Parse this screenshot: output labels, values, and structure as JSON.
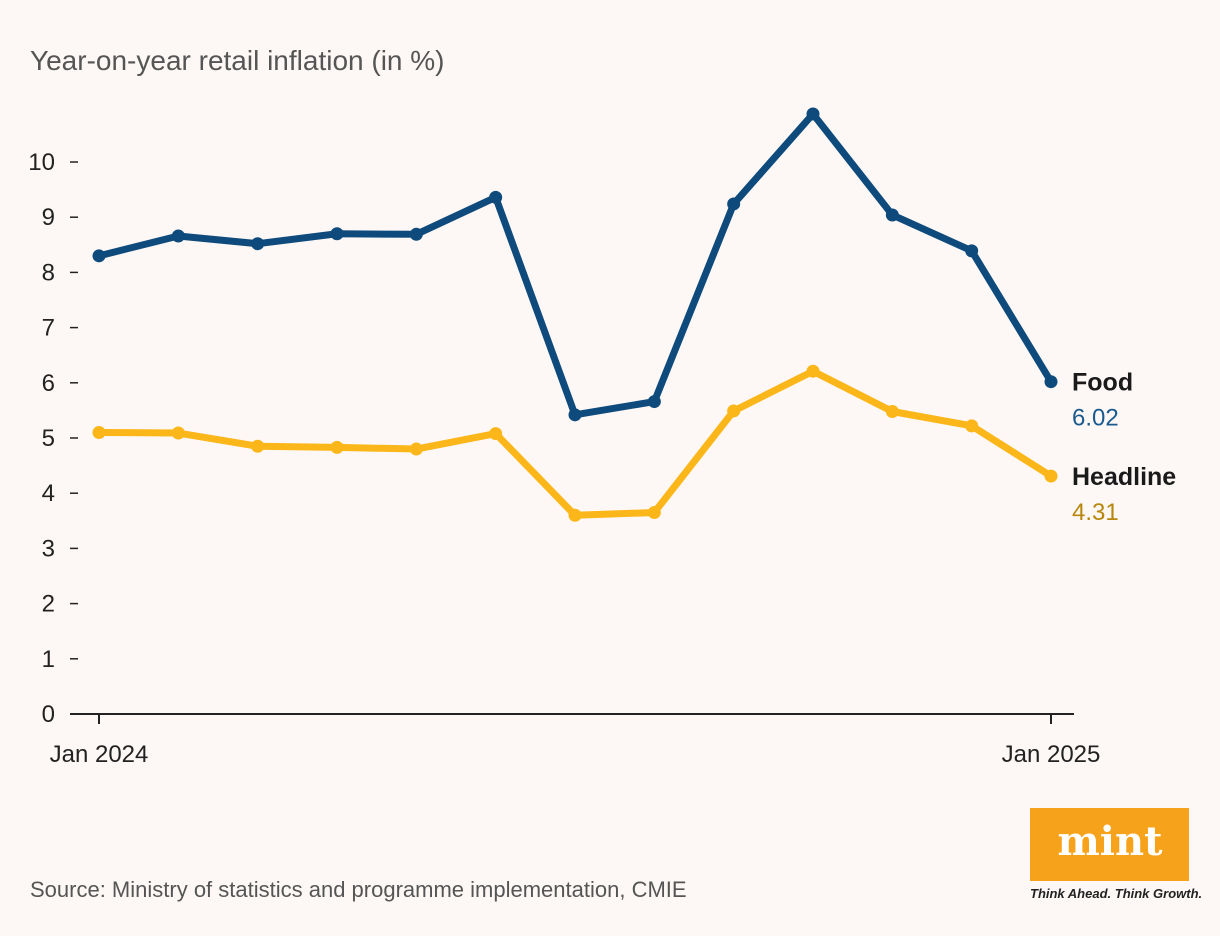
{
  "chart_data": {
    "type": "line",
    "title": "Year-on-year retail inflation (in %)",
    "x": [
      "Jan 2024",
      "Feb 2024",
      "Mar 2024",
      "Apr 2024",
      "May 2024",
      "Jun 2024",
      "Jul 2024",
      "Aug 2024",
      "Sep 2024",
      "Oct 2024",
      "Nov 2024",
      "Dec 2024",
      "Jan 2025"
    ],
    "x_tick_labels": [
      {
        "index": 0,
        "label": "Jan 2024"
      },
      {
        "index": 12,
        "label": "Jan 2025"
      }
    ],
    "y_ticks": [
      0,
      1,
      2,
      3,
      4,
      5,
      6,
      7,
      8,
      9,
      10
    ],
    "ylim": [
      0,
      10.9
    ],
    "series": [
      {
        "name": "Food",
        "color": "#0e4a7b",
        "value_color": "#1a5a8e",
        "end_label": "6.02",
        "values": [
          8.3,
          8.66,
          8.52,
          8.7,
          8.69,
          9.36,
          5.42,
          5.66,
          9.24,
          10.87,
          9.04,
          8.39,
          6.02
        ]
      },
      {
        "name": "Headline",
        "color": "#fbb619",
        "value_color": "#b8860b",
        "end_label": "4.31",
        "values": [
          5.1,
          5.09,
          4.85,
          4.83,
          4.8,
          5.08,
          3.6,
          3.65,
          5.49,
          6.21,
          5.48,
          5.22,
          4.31
        ]
      }
    ]
  },
  "source": "Source: Ministry of statistics and programme implementation, CMIE",
  "logo": {
    "word": "mint",
    "tagline": "Think Ahead. Think Growth.",
    "color": "#f7a21b"
  }
}
